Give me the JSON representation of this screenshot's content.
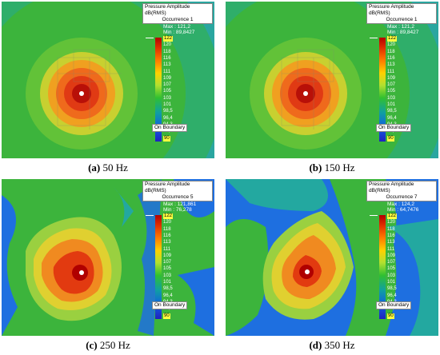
{
  "legend": {
    "title": "Pressure Amplitude dB(RMS)",
    "ticks": [
      "122",
      "120",
      "118",
      "116",
      "113",
      "111",
      "109",
      "107",
      "105",
      "103",
      "101",
      "98,5",
      "96,4",
      "94,3",
      "92,1",
      "90"
    ],
    "boundary": "On Boundary"
  },
  "panels": [
    {
      "letter": "(a)",
      "freq": "50 Hz",
      "occurrence": "Occurrence 1",
      "max": "Max : 121,2",
      "min": "Min : 89,8427",
      "style": "smooth"
    },
    {
      "letter": "(b)",
      "freq": "150 Hz",
      "occurrence": "Occurrence 1",
      "max": "Max : 121,2",
      "min": "Min : 89,8427",
      "style": "smooth"
    },
    {
      "letter": "(c)",
      "freq": "250 Hz",
      "occurrence": "Occurrence 5",
      "max": "Max : 121,861",
      "min": "Min : 76,278",
      "style": "rough"
    },
    {
      "letter": "(d)",
      "freq": "350 Hz",
      "occurrence": "Occurrence 7",
      "max": "Max : 124,2",
      "min": "Min : 64,7476",
      "style": "rough2"
    }
  ],
  "colors": {
    "deep_red": "#b00000",
    "red": "#e23a10",
    "orange": "#f08a20",
    "yellow": "#e0d030",
    "light_green": "#9ad040",
    "green": "#3cb43c",
    "teal": "#23a8a0",
    "blue": "#1e6fe0",
    "dark_blue": "#1a2fb0"
  }
}
